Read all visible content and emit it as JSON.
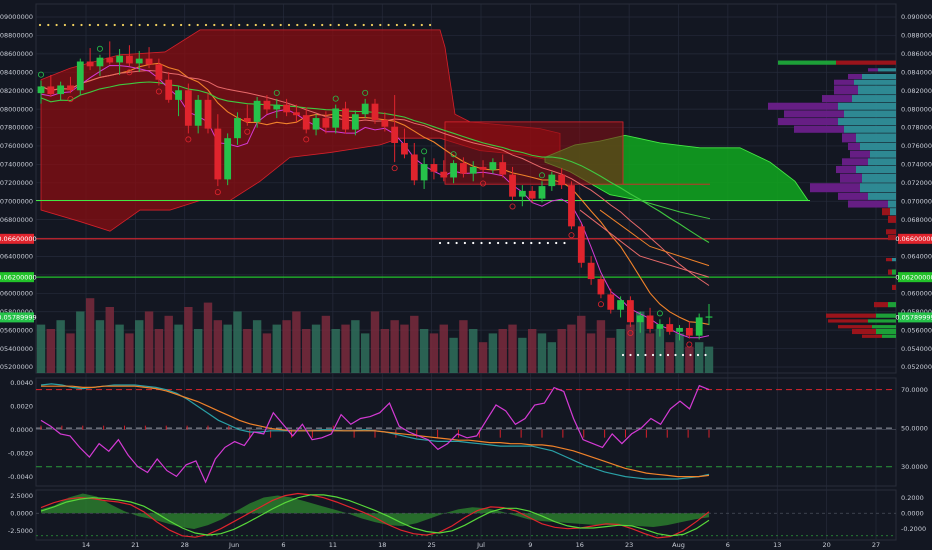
{
  "colors": {
    "background": "#131722",
    "grid": "#262b3b",
    "up": "#26c24a",
    "down": "#e0242d",
    "cloud_red": "#8a0d12",
    "cloud_green": "#10a81e",
    "vp_teal": "#2f8f9a",
    "vp_purple": "#6a1f8a",
    "vp_red": "#a2141b",
    "vp_green": "#1ea83a",
    "orange": "#f0822a",
    "magenta": "#d43ad4",
    "teal": "#2aa0a6",
    "lime": "#40c840"
  },
  "chart_data": [
    {
      "type": "candlestick",
      "panel": "price",
      "left_axis_ticks": [
        "0.09000000",
        "0.08800000",
        "0.08600000",
        "0.08400000",
        "0.08200000",
        "0.08000000",
        "0.07800000",
        "0.07600000",
        "0.07400000",
        "0.07200000",
        "0.07000000",
        "0.06800000",
        "0.06600000",
        "0.06400000",
        "0.06200000",
        "0.06000000",
        "0.05800000",
        "0.05600000",
        "0.05400000",
        "0.05200000"
      ],
      "right_axis_ticks": [
        "0.09000000",
        "0.08800000",
        "0.08600000",
        "0.08400000",
        "0.08200000",
        "0.08000000",
        "0.07800000",
        "0.07600000",
        "0.07400000",
        "0.07200000",
        "0.07000000",
        "0.06800000",
        "0.06600000",
        "0.06400000",
        "0.06200000",
        "0.06000000",
        "0.05800000",
        "0.05600000",
        "0.05400000",
        "0.05200000"
      ],
      "ylim": [
        0.052,
        0.0905
      ],
      "price_tags": [
        {
          "value": 0.066,
          "label": "0.06600000",
          "color": "#e0242d"
        },
        {
          "value": 0.062,
          "label": "0.06200000",
          "color": "#22c22a"
        },
        {
          "value": 0.0578,
          "label": "0.05789999",
          "color": "#26c24a"
        }
      ],
      "x_ticks": [
        "14",
        "21",
        "28",
        "Jun",
        "6",
        "11",
        "18",
        "25",
        "Jul",
        "9",
        "16",
        "23",
        "Aug",
        "6",
        "13",
        "20",
        "27"
      ],
      "candles": [
        [
          0.0812,
          0.0825,
          0.0801,
          0.0819
        ],
        [
          0.0819,
          0.0831,
          0.0808,
          0.0811
        ],
        [
          0.0811,
          0.0824,
          0.0804,
          0.082
        ],
        [
          0.082,
          0.0829,
          0.0812,
          0.0815
        ],
        [
          0.0815,
          0.0848,
          0.081,
          0.0845
        ],
        [
          0.0845,
          0.0859,
          0.0836,
          0.084
        ],
        [
          0.084,
          0.0852,
          0.083,
          0.0849
        ],
        [
          0.0849,
          0.0866,
          0.0842,
          0.0844
        ],
        [
          0.0844,
          0.0858,
          0.0831,
          0.0851
        ],
        [
          0.0851,
          0.0862,
          0.084,
          0.0843
        ],
        [
          0.0843,
          0.0856,
          0.0834,
          0.0848
        ],
        [
          0.0848,
          0.086,
          0.0838,
          0.0842
        ],
        [
          0.0842,
          0.0848,
          0.082,
          0.0826
        ],
        [
          0.0826,
          0.0834,
          0.0802,
          0.0805
        ],
        [
          0.0805,
          0.082,
          0.0788,
          0.0815
        ],
        [
          0.0815,
          0.0822,
          0.077,
          0.0778
        ],
        [
          0.0778,
          0.081,
          0.077,
          0.0805
        ],
        [
          0.0805,
          0.0812,
          0.077,
          0.0775
        ],
        [
          0.0775,
          0.079,
          0.0715,
          0.0722
        ],
        [
          0.0722,
          0.077,
          0.0716,
          0.0765
        ],
        [
          0.0765,
          0.0792,
          0.0758,
          0.0786
        ],
        [
          0.0786,
          0.08,
          0.0778,
          0.0782
        ],
        [
          0.0782,
          0.0808,
          0.0776,
          0.0804
        ],
        [
          0.0804,
          0.081,
          0.079,
          0.0795
        ],
        [
          0.0795,
          0.0806,
          0.0786,
          0.08
        ],
        [
          0.08,
          0.0806,
          0.0788,
          0.0792
        ],
        [
          0.0792,
          0.08,
          0.0782,
          0.0789
        ],
        [
          0.0789,
          0.0797,
          0.077,
          0.0774
        ],
        [
          0.0774,
          0.079,
          0.0768,
          0.0786
        ],
        [
          0.0786,
          0.0793,
          0.077,
          0.0776
        ],
        [
          0.0776,
          0.08,
          0.077,
          0.0796
        ],
        [
          0.0796,
          0.0803,
          0.077,
          0.0774
        ],
        [
          0.0774,
          0.0794,
          0.0768,
          0.079
        ],
        [
          0.079,
          0.0806,
          0.0786,
          0.0801
        ],
        [
          0.0801,
          0.0806,
          0.078,
          0.0784
        ],
        [
          0.0784,
          0.0792,
          0.0772,
          0.0777
        ],
        [
          0.0777,
          0.081,
          0.074,
          0.076
        ],
        [
          0.076,
          0.0775,
          0.0744,
          0.0748
        ],
        [
          0.0748,
          0.076,
          0.0716,
          0.0721
        ],
        [
          0.0721,
          0.0745,
          0.0712,
          0.0738
        ],
        [
          0.0738,
          0.0744,
          0.0722,
          0.073
        ],
        [
          0.073,
          0.0742,
          0.072,
          0.0724
        ],
        [
          0.0724,
          0.0742,
          0.0718,
          0.0739
        ],
        [
          0.0739,
          0.0745,
          0.0724,
          0.0728
        ],
        [
          0.0728,
          0.0741,
          0.072,
          0.0735
        ],
        [
          0.0735,
          0.0742,
          0.0724,
          0.0732
        ],
        [
          0.0732,
          0.0744,
          0.0728,
          0.074
        ],
        [
          0.074,
          0.0748,
          0.0724,
          0.0727
        ],
        [
          0.0727,
          0.0735,
          0.07,
          0.0704
        ],
        [
          0.0704,
          0.0716,
          0.0694,
          0.071
        ],
        [
          0.071,
          0.0715,
          0.0698,
          0.0702
        ],
        [
          0.0702,
          0.072,
          0.0698,
          0.0715
        ],
        [
          0.0715,
          0.073,
          0.071,
          0.0727
        ],
        [
          0.0727,
          0.0734,
          0.0712,
          0.0716
        ],
        [
          0.0716,
          0.072,
          0.067,
          0.0673
        ],
        [
          0.0673,
          0.0676,
          0.063,
          0.0635
        ],
        [
          0.0635,
          0.0642,
          0.0612,
          0.0618
        ],
        [
          0.0618,
          0.0622,
          0.0598,
          0.0602
        ],
        [
          0.0602,
          0.0608,
          0.0582,
          0.0586
        ],
        [
          0.0586,
          0.06,
          0.0578,
          0.0596
        ],
        [
          0.0596,
          0.06,
          0.0568,
          0.0573
        ],
        [
          0.0573,
          0.0584,
          0.0562,
          0.058
        ],
        [
          0.058,
          0.0588,
          0.0562,
          0.0566
        ],
        [
          0.0566,
          0.0576,
          0.0558,
          0.0571
        ],
        [
          0.0571,
          0.0578,
          0.056,
          0.0563
        ],
        [
          0.0563,
          0.057,
          0.0554,
          0.0567
        ],
        [
          0.0567,
          0.0574,
          0.0556,
          0.0559
        ],
        [
          0.0559,
          0.0582,
          0.0555,
          0.0578
        ],
        [
          0.0578,
          0.0592,
          0.057,
          0.0579
        ]
      ]
    },
    {
      "type": "line",
      "panel": "oscillator",
      "left_axis_ticks": [
        "0.0040",
        "0.0020",
        "0.0000",
        "-0.0020",
        "-0.0040"
      ],
      "right_axis_ticks": [
        "70.0000",
        "50.0000",
        "30.0000"
      ],
      "ylim_left": [
        -0.0048,
        0.0044
      ],
      "rsi_ylim": [
        20,
        76
      ],
      "rsi_levels": [
        70,
        50,
        30
      ],
      "series": [
        {
          "values": [
            0.0038,
            0.0039,
            0.0038,
            0.0036,
            0.0035,
            0.0036,
            0.0037,
            0.0038,
            0.0038,
            0.0038,
            0.0037,
            0.0036,
            0.0034,
            0.0031,
            0.0026,
            0.002,
            0.0014,
            0.0008,
            0.0004,
            0.0,
            -0.0002,
            -0.0002,
            -0.0001,
            -0.0001,
            -0.0001,
            -0.0001,
            -0.0001,
            0.0,
            0.0,
            -0.0001,
            -0.0001,
            0.0,
            -0.0001,
            -0.0002,
            -0.0004,
            -0.0006,
            -0.0008,
            -0.0009,
            -0.001,
            -0.001,
            -0.001,
            -0.0011,
            -0.0012,
            -0.0013,
            -0.0014,
            -0.0014,
            -0.0014,
            -0.0014,
            -0.0016,
            -0.0018,
            -0.0022,
            -0.0026,
            -0.003,
            -0.0033,
            -0.0036,
            -0.0038,
            -0.004,
            -0.0041,
            -0.0042,
            -0.0042,
            -0.0042,
            -0.0042,
            -0.0041,
            -0.004,
            -0.0038
          ]
        },
        {
          "values": [
            0.0037,
            0.0037,
            0.0037,
            0.0037,
            0.0036,
            0.0036,
            0.0037,
            0.0037,
            0.0037,
            0.0037,
            0.0036,
            0.0035,
            0.0033,
            0.003,
            0.0027,
            0.0024,
            0.002,
            0.0016,
            0.0012,
            0.0008,
            0.0005,
            0.0003,
            0.0001,
            0.0,
            -0.0001,
            -0.0001,
            -0.0001,
            -0.0001,
            -0.0001,
            -0.0001,
            -0.0001,
            -0.0001,
            -0.0001,
            -0.0002,
            -0.0003,
            -0.0004,
            -0.0005,
            -0.0006,
            -0.0007,
            -0.0008,
            -0.0009,
            -0.0009,
            -0.001,
            -0.0011,
            -0.0011,
            -0.0012,
            -0.0012,
            -0.0013,
            -0.0013,
            -0.0014,
            -0.0016,
            -0.0018,
            -0.0021,
            -0.0024,
            -0.0027,
            -0.003,
            -0.0033,
            -0.0035,
            -0.0037,
            -0.0038,
            -0.0039,
            -0.004,
            -0.004,
            -0.004,
            -0.0039
          ]
        },
        {
          "values": [
            54,
            51,
            47,
            46,
            40,
            35,
            42,
            38,
            44,
            36,
            30,
            27,
            34,
            28,
            25,
            31,
            33,
            22,
            34,
            40,
            43,
            41,
            48,
            47,
            58,
            52,
            46,
            52,
            44,
            45,
            47,
            57,
            52,
            55,
            56,
            58,
            63,
            51,
            48,
            46,
            44,
            39,
            42,
            47,
            45,
            46,
            54,
            62,
            59,
            52,
            55,
            62,
            63,
            71,
            69,
            55,
            44,
            42,
            40,
            47,
            42,
            47,
            50,
            55,
            52,
            60,
            64,
            60,
            72,
            70
          ]
        }
      ]
    },
    {
      "type": "area",
      "panel": "momentum",
      "left_axis_ticks": [
        "2.5000",
        "0.0000",
        "-2.5000"
      ],
      "right_axis_ticks": [
        "0.2000",
        "0.0000",
        "-0.2000"
      ],
      "ylim": [
        -3.8,
        3.3
      ],
      "series": [
        {
          "values": [
            0.8,
            1.5,
            2.0,
            2.2,
            2.1,
            1.8,
            1.6,
            1.2,
            0.2,
            -1.2,
            -2.4,
            -3.2,
            -3.4,
            -3.0,
            -2.2,
            -1.2,
            -0.2,
            0.8,
            1.8,
            2.5,
            2.8,
            2.6,
            2.2,
            1.6,
            0.9,
            0.2,
            -0.6,
            -1.6,
            -2.4,
            -2.9,
            -3.1,
            -2.7,
            -1.8,
            -0.6,
            0.4,
            0.9,
            0.8,
            0.3,
            -0.6,
            -1.5,
            -2.0,
            -2.2,
            -2.1,
            -1.8,
            -1.5,
            -1.6,
            -2.2,
            -2.9,
            -3.5,
            -3.3,
            -2.5,
            -1.2,
            0.2
          ]
        },
        {
          "values": [
            0.3,
            0.9,
            1.6,
            2.0,
            2.2,
            2.1,
            1.9,
            1.6,
            1.0,
            0.0,
            -1.1,
            -2.1,
            -2.8,
            -3.1,
            -2.9,
            -2.3,
            -1.4,
            -0.4,
            0.6,
            1.5,
            2.2,
            2.6,
            2.6,
            2.3,
            1.8,
            1.1,
            0.4,
            -0.4,
            -1.3,
            -2.1,
            -2.6,
            -2.8,
            -2.5,
            -1.7,
            -0.7,
            0.2,
            0.7,
            0.7,
            0.3,
            -0.4,
            -1.2,
            -1.8,
            -2.1,
            -2.1,
            -1.9,
            -1.7,
            -1.8,
            -2.3,
            -2.9,
            -3.2,
            -3.0,
            -2.2,
            -1.0
          ]
        },
        {
          "values": [
            0.4,
            0.8,
            1.6,
            2.0,
            1.7,
            0.9,
            0.2,
            -0.3,
            -0.6,
            -1.0,
            -1.4,
            -1.6,
            -1.2,
            -0.6,
            0.2,
            1.0,
            1.6,
            1.8,
            1.6,
            1.2,
            0.8,
            0.4,
            0.0,
            -0.5,
            -0.9,
            -1.2,
            -1.3,
            -1.0,
            -0.5,
            0.0,
            0.4,
            0.6,
            0.5,
            0.2,
            -0.2,
            -0.6,
            -0.8,
            -0.9,
            -1.0,
            -1.1,
            -1.2,
            -1.2,
            -1.2,
            -1.3,
            -1.4,
            -1.2,
            -0.9,
            -0.6,
            -0.4
          ]
        }
      ]
    }
  ]
}
